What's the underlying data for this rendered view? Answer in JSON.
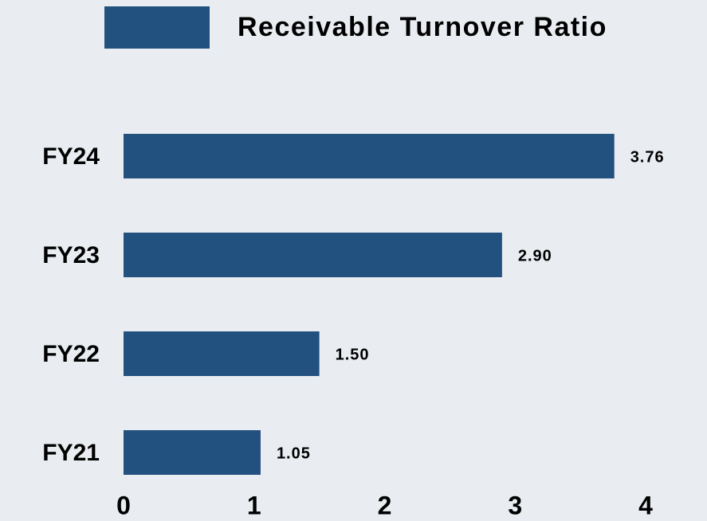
{
  "chart_data": {
    "type": "bar",
    "orientation": "horizontal",
    "categories": [
      "FY24",
      "FY23",
      "FY22",
      "FY21"
    ],
    "series": [
      {
        "name": "Receivable Turnover Ratio",
        "color": "#22507f",
        "values": [
          3.76,
          2.9,
          1.5,
          1.05
        ],
        "value_labels": [
          "3.76",
          "2.90",
          "1.50",
          "1.05"
        ]
      }
    ],
    "xlim": [
      0,
      4
    ],
    "xticks": [
      0,
      1,
      2,
      3,
      4
    ],
    "grid": false,
    "legend": "top"
  }
}
